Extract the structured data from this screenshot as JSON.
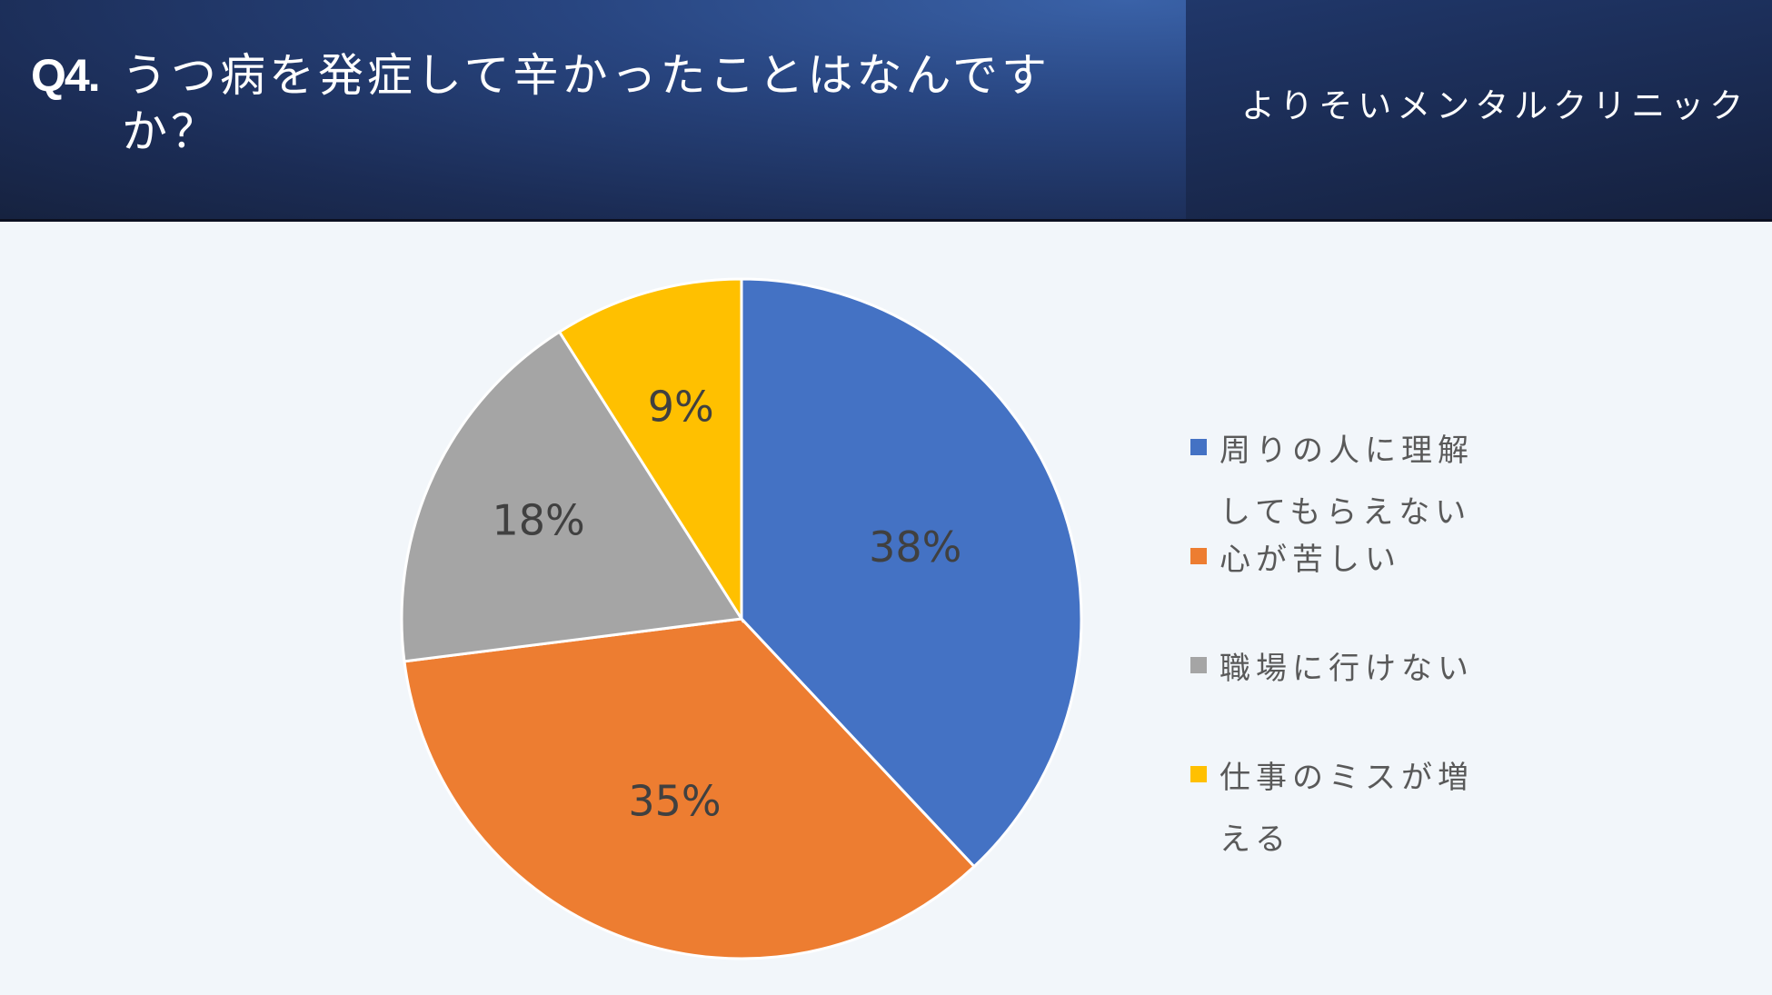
{
  "header": {
    "question_number": "Q4.",
    "question_text": "うつ病を発症して辛かったことはなんですか？",
    "clinic_name": "よりそいメンタルクリニック"
  },
  "chart_data": {
    "type": "pie",
    "title": "うつ病を発症して辛かったことはなんですか？",
    "categories": [
      "周りの人に理解してもらえない",
      "心が苦しい",
      "職場に行けない",
      "仕事のミスが増える"
    ],
    "values": [
      38,
      35,
      18,
      9
    ],
    "labels": [
      "38%",
      "35%",
      "18%",
      "9%"
    ],
    "colors": [
      "#4472c4",
      "#ed7d31",
      "#a5a5a5",
      "#ffc000"
    ],
    "legend_position": "right",
    "start_angle_deg": 0,
    "direction": "clockwise"
  }
}
